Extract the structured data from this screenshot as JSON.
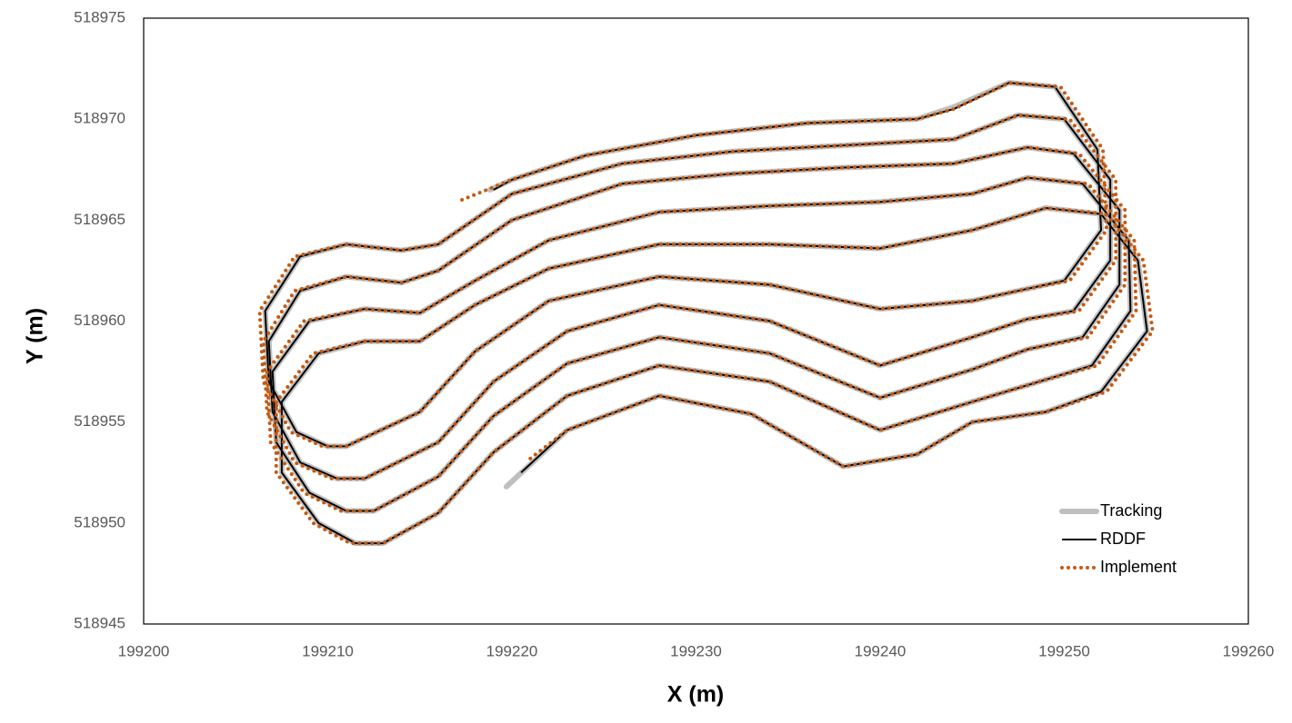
{
  "chart_data": {
    "type": "line",
    "xlabel": "X (m)",
    "ylabel": "Y (m)",
    "xlim": [
      199200,
      199260
    ],
    "ylim": [
      518945,
      518975
    ],
    "xticks": [
      199200,
      199210,
      199220,
      199230,
      199240,
      199250,
      199260
    ],
    "yticks": [
      518945,
      518950,
      518955,
      518960,
      518965,
      518970,
      518975
    ],
    "grid": false,
    "legend": "lower right",
    "series": [
      {
        "name": "Tracking",
        "color": "#bfbfbf",
        "style": "thick",
        "x": [
          199219.7,
          199223,
          199228,
          199233,
          199238,
          199242,
          199245,
          199249,
          199252,
          199254.5,
          199254,
          199252,
          199249,
          199245,
          199240,
          199234,
          199228,
          199222,
          199218,
          199215,
          199212,
          199209.5,
          199207.5,
          199207.5,
          199209.5,
          199211.5,
          199213,
          199216,
          199219,
          199223,
          199228,
          199234,
          199240,
          199245,
          199249,
          199251.5,
          199253.6,
          199253.5,
          199251,
          199248,
          199245,
          199240,
          199234,
          199228,
          199222,
          199218,
          199215,
          199212,
          199209,
          199207,
          199207.2,
          199209,
          199211,
          199212.5,
          199216,
          199219,
          199223,
          199228,
          199234,
          199240,
          199245,
          199248,
          199251,
          199253,
          199253,
          199250.5,
          199248,
          199244,
          199238,
          199232,
          199226,
          199220,
          199216,
          199214,
          199211,
          199208.5,
          199206.8,
          199207,
          199208.5,
          199210.5,
          199212,
          199216,
          199219,
          199223,
          199228,
          199234,
          199240,
          199245,
          199248,
          199250.5,
          199252.5,
          199252.5,
          199250,
          199247.5,
          199244,
          199238,
          199232,
          199226,
          199220,
          199216,
          199214,
          199211,
          199208.5,
          199206.6,
          199206.8,
          199208.3,
          199210,
          199211,
          199215,
          199218,
          199222,
          199228,
          199234,
          199240,
          199245,
          199248,
          199250,
          199252,
          199251.8,
          199249.5,
          199247,
          199244,
          199242,
          199236,
          199230,
          199224,
          199220,
          199218.8
        ],
        "y": [
          518951.8,
          518954.6,
          518956.3,
          518955.4,
          518952.8,
          518953.4,
          518955,
          518955.5,
          518956.5,
          518959.5,
          518963,
          518965.3,
          518965.6,
          518964.5,
          518963.6,
          518963.8,
          518963.8,
          518962.6,
          518960.8,
          518959,
          518959,
          518958.4,
          518956,
          518952.5,
          518950,
          518949,
          518949,
          518950.5,
          518953.5,
          518956.3,
          518957.8,
          518957,
          518954.6,
          518956,
          518957.1,
          518957.8,
          518960.5,
          518964,
          518966.8,
          518967.1,
          518966.3,
          518965.9,
          518965.7,
          518965.4,
          518964,
          518962,
          518960.4,
          518960.6,
          518960,
          518957.5,
          518954,
          518951.5,
          518950.6,
          518950.6,
          518952.3,
          518955.3,
          518957.9,
          518959.2,
          518958.4,
          518956.2,
          518957.6,
          518958.6,
          518959.2,
          518961.8,
          518965.5,
          518968.3,
          518968.6,
          518967.8,
          518967.6,
          518967.3,
          518966.8,
          518965,
          518962.5,
          518961.9,
          518962.2,
          518961.5,
          518959,
          518955.5,
          518953,
          518952.2,
          518952.2,
          518954,
          518957,
          518959.5,
          518960.8,
          518960,
          518957.8,
          518959.2,
          518960.1,
          518960.5,
          518963,
          518967,
          518970,
          518970.2,
          518969,
          518968.7,
          518968.4,
          518967.8,
          518966.3,
          518963.8,
          518963.5,
          518963.8,
          518963.2,
          518960.5,
          518957,
          518954.5,
          518953.8,
          518953.8,
          518955.5,
          518958.5,
          518961,
          518962.2,
          518961.8,
          518960.6,
          518961,
          518961.6,
          518962,
          518964.5,
          518968.5,
          518971.6,
          518971.8,
          518970.6,
          518970,
          518969.8,
          518969.2,
          518968.2,
          518967,
          518966.5
        ]
      },
      {
        "name": "RDDF",
        "color": "#000000",
        "style": "solid",
        "x": [
          199220.5,
          199223,
          199228,
          199233,
          199238,
          199242,
          199245,
          199249,
          199252,
          199254.5,
          199254,
          199252,
          199249,
          199245,
          199240,
          199234,
          199228,
          199222,
          199218,
          199215,
          199212,
          199209.5,
          199207.5,
          199207.5,
          199209.5,
          199211.5,
          199213,
          199216,
          199219,
          199223,
          199228,
          199234,
          199240,
          199245,
          199249,
          199251.5,
          199253.6,
          199253.5,
          199251,
          199248,
          199245,
          199240,
          199234,
          199228,
          199222,
          199218,
          199215,
          199212,
          199209,
          199207,
          199207.2,
          199209,
          199211,
          199212.5,
          199216,
          199219,
          199223,
          199228,
          199234,
          199240,
          199245,
          199248,
          199251,
          199253,
          199253,
          199250.5,
          199248,
          199244,
          199238,
          199232,
          199226,
          199220,
          199216,
          199214,
          199211,
          199208.5,
          199206.8,
          199207,
          199208.5,
          199210.5,
          199212,
          199216,
          199219,
          199223,
          199228,
          199234,
          199240,
          199245,
          199248,
          199250.5,
          199252.5,
          199252.5,
          199250,
          199247.5,
          199244,
          199238,
          199232,
          199226,
          199220,
          199216,
          199214,
          199211,
          199208.5,
          199206.6,
          199206.8,
          199208.3,
          199210,
          199211,
          199215,
          199218,
          199222,
          199228,
          199234,
          199240,
          199245,
          199248,
          199250,
          199252,
          199251.8,
          199249.5,
          199247,
          199244,
          199242,
          199236,
          199230,
          199224,
          199220,
          199219
        ],
        "y": [
          518952.5,
          518954.6,
          518956.3,
          518955.4,
          518952.8,
          518953.4,
          518955,
          518955.5,
          518956.5,
          518959.5,
          518963,
          518965.3,
          518965.6,
          518964.5,
          518963.6,
          518963.8,
          518963.8,
          518962.6,
          518960.8,
          518959,
          518959,
          518958.4,
          518956,
          518952.5,
          518950,
          518949,
          518949,
          518950.5,
          518953.5,
          518956.3,
          518957.8,
          518957,
          518954.6,
          518956,
          518957.1,
          518957.8,
          518960.5,
          518964,
          518966.8,
          518967.1,
          518966.3,
          518965.9,
          518965.7,
          518965.4,
          518964,
          518962,
          518960.4,
          518960.6,
          518960,
          518957.5,
          518954,
          518951.5,
          518950.6,
          518950.6,
          518952.3,
          518955.3,
          518957.9,
          518959.2,
          518958.4,
          518956.2,
          518957.6,
          518958.6,
          518959.2,
          518961.8,
          518965.5,
          518968.3,
          518968.6,
          518967.8,
          518967.6,
          518967.3,
          518966.8,
          518965,
          518962.5,
          518961.9,
          518962.2,
          518961.5,
          518959,
          518955.5,
          518953,
          518952.2,
          518952.2,
          518954,
          518957,
          518959.5,
          518960.8,
          518960,
          518957.8,
          518959.2,
          518960.1,
          518960.5,
          518963,
          518967,
          518970,
          518970.2,
          518969,
          518968.7,
          518968.4,
          518967.8,
          518966.3,
          518963.8,
          518963.5,
          518963.8,
          518963.2,
          518960.5,
          518957,
          518954.5,
          518953.8,
          518953.8,
          518955.5,
          518958.5,
          518961,
          518962.2,
          518961.8,
          518960.6,
          518961,
          518961.6,
          518962,
          518964.5,
          518968.5,
          518971.6,
          518971.8,
          518970.5,
          518970,
          518969.8,
          518969.2,
          518968.2,
          518967,
          518966.5
        ]
      },
      {
        "name": "Implement",
        "color": "#c55a11",
        "style": "dotted",
        "x": [
          199221,
          199223,
          199228,
          199233,
          199238,
          199242,
          199245,
          199249,
          199252.3,
          199254.8,
          199254.3,
          199252.3,
          199249,
          199245,
          199240,
          199234,
          199228,
          199222,
          199218,
          199215,
          199212,
          199209.2,
          199207.2,
          199207.2,
          199209.2,
          199211.2,
          199213,
          199216,
          199219,
          199223,
          199228,
          199234,
          199240,
          199245,
          199249,
          199251.8,
          199253.9,
          199253.8,
          199251.3,
          199248,
          199245,
          199240,
          199234,
          199228,
          199222,
          199218,
          199215,
          199212,
          199208.7,
          199206.7,
          199206.9,
          199208.7,
          199210.7,
          199212.5,
          199216,
          199219,
          199223,
          199228,
          199234,
          199240,
          199245,
          199248,
          199251.3,
          199253.3,
          199253.3,
          199250.8,
          199248,
          199244,
          199238,
          199232,
          199226,
          199220,
          199216,
          199214,
          199211,
          199208.2,
          199206.5,
          199206.7,
          199208.2,
          199210.2,
          199212,
          199216,
          199219,
          199223,
          199228,
          199234,
          199240,
          199245,
          199248,
          199250.8,
          199252.8,
          199252.8,
          199250.3,
          199247.5,
          199244,
          199238,
          199232,
          199226,
          199220,
          199216,
          199214,
          199211,
          199208.2,
          199206.3,
          199206.5,
          199208,
          199209.7,
          199211,
          199215,
          199218,
          199222,
          199228,
          199234,
          199240,
          199245,
          199248,
          199250.3,
          199252.3,
          199252.1,
          199249.8,
          199247,
          199244,
          199242,
          199236,
          199230,
          199224,
          199220,
          199217
        ],
        "y": [
          518953.2,
          518954.6,
          518956.3,
          518955.4,
          518952.8,
          518953.4,
          518955,
          518955.5,
          518956.5,
          518959.5,
          518963,
          518965.3,
          518965.6,
          518964.5,
          518963.6,
          518963.8,
          518963.8,
          518962.6,
          518960.8,
          518959,
          518959,
          518958.4,
          518956,
          518952.5,
          518950,
          518949,
          518949,
          518950.5,
          518953.5,
          518956.3,
          518957.8,
          518957,
          518954.6,
          518956,
          518957.1,
          518957.8,
          518960.5,
          518964,
          518966.8,
          518967.1,
          518966.3,
          518965.9,
          518965.7,
          518965.4,
          518964,
          518962,
          518960.4,
          518960.6,
          518960,
          518957.5,
          518954,
          518951.5,
          518950.6,
          518950.6,
          518952.3,
          518955.3,
          518957.9,
          518959.2,
          518958.4,
          518956.2,
          518957.6,
          518958.6,
          518959.2,
          518961.8,
          518965.5,
          518968.3,
          518968.6,
          518967.8,
          518967.6,
          518967.3,
          518966.8,
          518965,
          518962.5,
          518961.9,
          518962.2,
          518961.5,
          518959,
          518955.5,
          518953,
          518952.2,
          518952.2,
          518954,
          518957,
          518959.5,
          518960.8,
          518960,
          518957.8,
          518959.2,
          518960.1,
          518960.5,
          518963,
          518967,
          518970,
          518970.2,
          518969,
          518968.7,
          518968.4,
          518967.8,
          518966.3,
          518963.8,
          518963.5,
          518963.8,
          518963.2,
          518960.5,
          518957,
          518954.5,
          518953.8,
          518953.8,
          518955.5,
          518958.5,
          518961,
          518962.2,
          518961.8,
          518960.6,
          518961,
          518961.6,
          518962,
          518964.5,
          518968.5,
          518971.6,
          518971.8,
          518970.5,
          518970,
          518969.8,
          518969.2,
          518968.2,
          518967,
          518965.9
        ]
      }
    ]
  }
}
